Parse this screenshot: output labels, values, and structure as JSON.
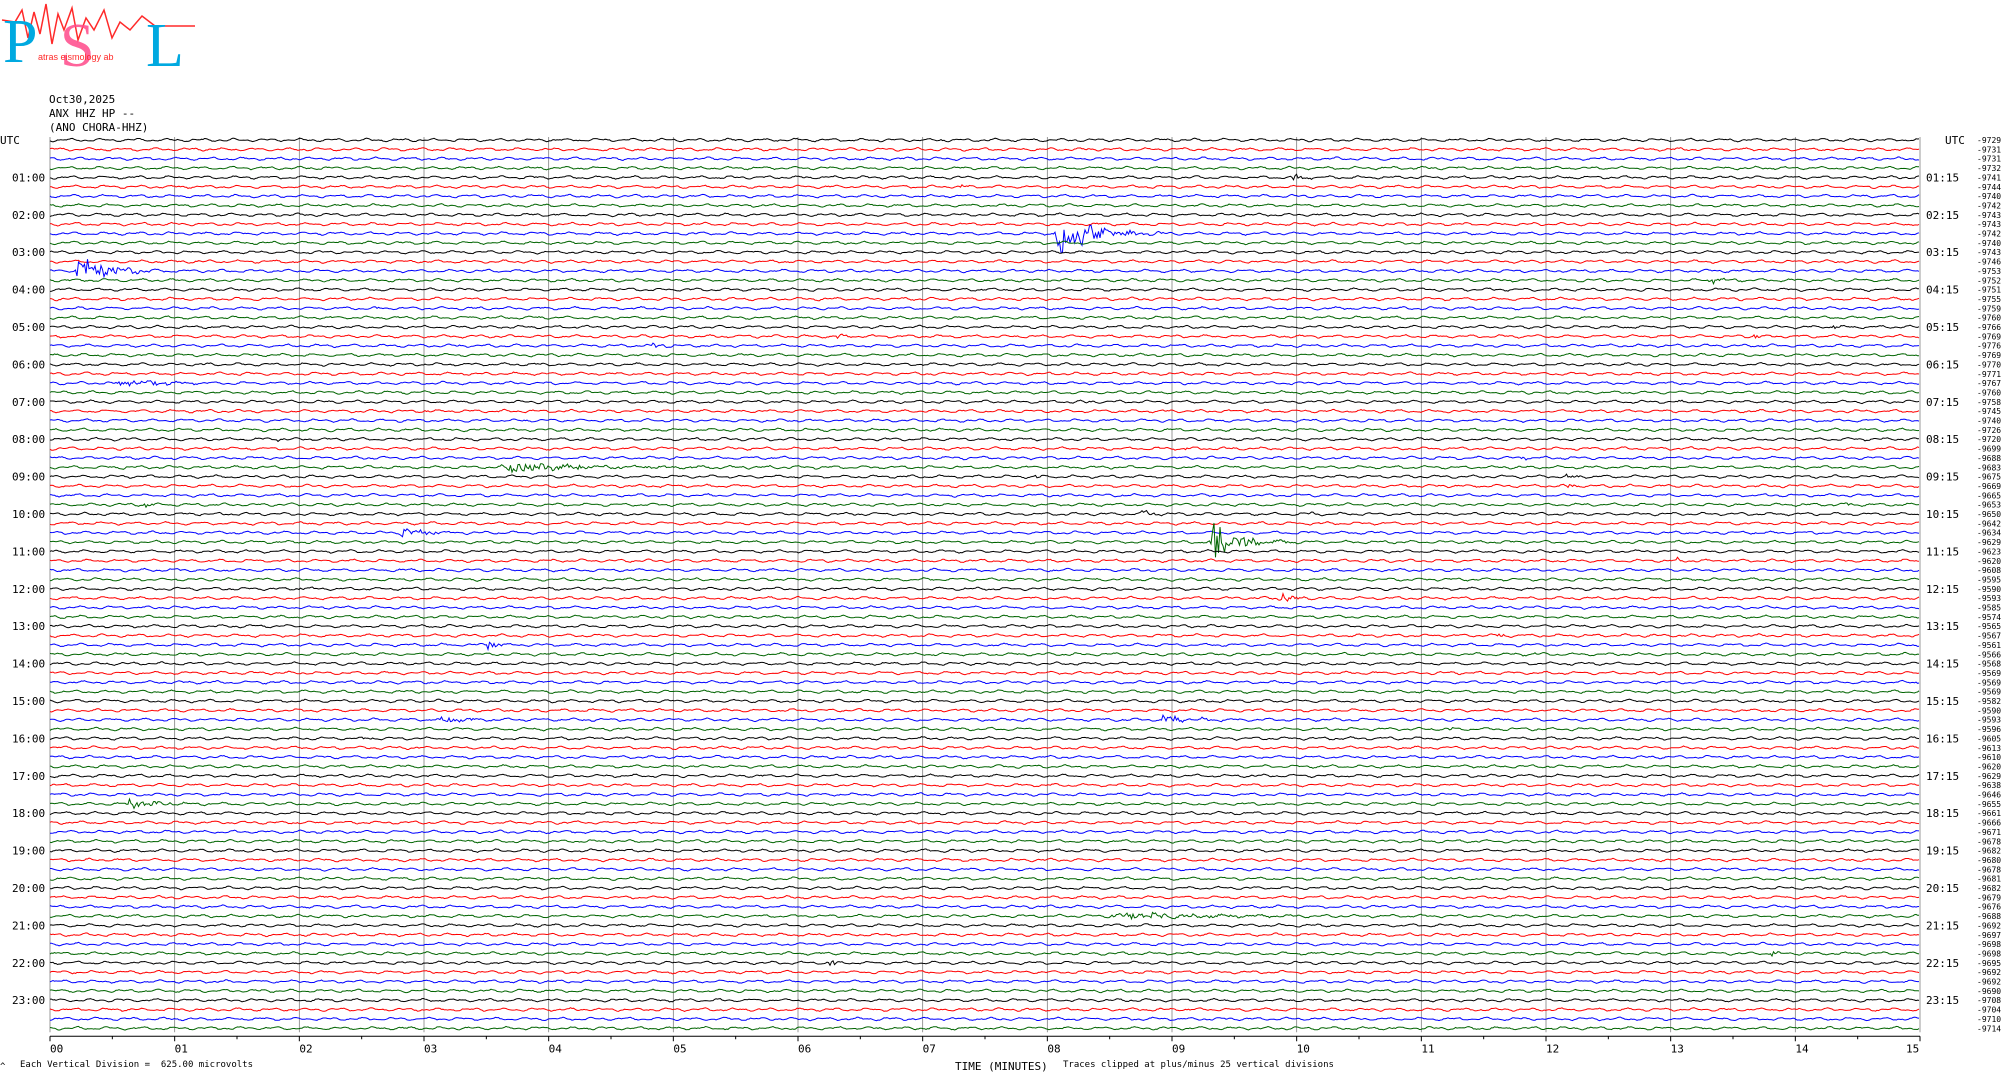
{
  "logo": {
    "text_p": "P",
    "text_s": "S",
    "text_l": "L",
    "sub_text": "atras  eismology  ab",
    "colors": {
      "main": "#00a9e0",
      "accent": "#ff2a2a"
    }
  },
  "header": {
    "date": "Oct30,2025",
    "station": "ANX HHZ HP --",
    "description": "(ANO CHORA-HHZ)"
  },
  "colors": {
    "black": "#000000",
    "red": "#ff0000",
    "blue": "#0000ff",
    "green": "#006400",
    "grid": "#808080"
  },
  "chart_data": {
    "type": "line",
    "xlabel": "TIME (MINUTES)",
    "xlim": [
      0,
      15
    ],
    "x_ticks": [
      "00",
      "01",
      "02",
      "03",
      "04",
      "05",
      "06",
      "07",
      "08",
      "09",
      "10",
      "11",
      "12",
      "13",
      "14",
      "15"
    ],
    "left_label_header": "UTC",
    "right_label_header": "UTC",
    "left_hour_labels": [
      "01:00",
      "02:00",
      "03:00",
      "04:00",
      "05:00",
      "06:00",
      "07:00",
      "08:00",
      "09:00",
      "10:00",
      "11:00",
      "12:00",
      "13:00",
      "14:00",
      "15:00",
      "16:00",
      "17:00",
      "18:00",
      "19:00",
      "20:00",
      "21:00",
      "22:00",
      "23:00"
    ],
    "right_hour_labels": [
      "01:15",
      "02:15",
      "03:15",
      "04:15",
      "05:15",
      "06:15",
      "07:15",
      "08:15",
      "09:15",
      "10:15",
      "11:15",
      "12:15",
      "13:15",
      "14:15",
      "15:15",
      "16:15",
      "17:15",
      "18:15",
      "19:15",
      "20:15",
      "21:15",
      "22:15",
      "23:15"
    ],
    "trace_count": 96,
    "color_cycle": [
      "black",
      "red",
      "blue",
      "green"
    ],
    "right_values": [
      -9729,
      -9731,
      -9731,
      -9732,
      -9741,
      -9744,
      -9740,
      -9742,
      -9743,
      -9743,
      -9742,
      -9740,
      -9743,
      -9746,
      -9753,
      -9752,
      -9751,
      -9755,
      -9759,
      -9760,
      -9766,
      -9769,
      -9776,
      -9769,
      -9770,
      -9771,
      -9767,
      -9760,
      -9758,
      -9745,
      -9740,
      -9726,
      -9720,
      -9699,
      -9688,
      -9683,
      -9675,
      -9669,
      -9665,
      -9653,
      -9650,
      -9642,
      -9634,
      -9629,
      -9623,
      -9620,
      -9608,
      -9595,
      -9590,
      -9593,
      -9585,
      -9574,
      -9565,
      -9567,
      -9561,
      -9566,
      -9568,
      -9569,
      -9569,
      -9569,
      -9582,
      -9590,
      -9593,
      -9596,
      -9605,
      -9613,
      -9610,
      -9620,
      -9629,
      -9638,
      -9646,
      -9655,
      -9661,
      -9666,
      -9671,
      -9678,
      -9682,
      -9680,
      -9678,
      -9681,
      -9682,
      -9679,
      -9676,
      -9688,
      -9692,
      -9697,
      -9698,
      -9698,
      -9695,
      -9692,
      -9692,
      -9690,
      -9708,
      -9704,
      -9710,
      -9714
    ],
    "events": [
      {
        "trace": 4,
        "minute": 9.95,
        "amp": 6,
        "dur": 0.25
      },
      {
        "trace": 5,
        "minute": 7.3,
        "amp": 3,
        "dur": 0.1
      },
      {
        "trace": 10,
        "minute": 8.05,
        "amp": 30,
        "dur": 0.9
      },
      {
        "trace": 14,
        "minute": 0.2,
        "amp": 16,
        "dur": 0.9
      },
      {
        "trace": 15,
        "minute": 13.3,
        "amp": 4,
        "dur": 0.4
      },
      {
        "trace": 18,
        "minute": 2.6,
        "amp": 4,
        "dur": 0.1
      },
      {
        "trace": 21,
        "minute": 6.3,
        "amp": 6,
        "dur": 0.15
      },
      {
        "trace": 21,
        "minute": 13.65,
        "amp": 4,
        "dur": 0.15
      },
      {
        "trace": 22,
        "minute": 4.8,
        "amp": 4,
        "dur": 0.3
      },
      {
        "trace": 20,
        "minute": 14.3,
        "amp": 3,
        "dur": 0.15
      },
      {
        "trace": 26,
        "minute": 0.5,
        "amp": 5,
        "dur": 1.2
      },
      {
        "trace": 28,
        "minute": 8.3,
        "amp": 3,
        "dur": 0.2
      },
      {
        "trace": 28,
        "minute": 13.05,
        "amp": 3,
        "dur": 0.15
      },
      {
        "trace": 29,
        "minute": 3.0,
        "amp": 2,
        "dur": 0.1
      },
      {
        "trace": 32,
        "minute": 1.8,
        "amp": 3,
        "dur": 0.15
      },
      {
        "trace": 33,
        "minute": 9.1,
        "amp": 3,
        "dur": 0.15
      },
      {
        "trace": 34,
        "minute": 11.8,
        "amp": 3,
        "dur": 0.15
      },
      {
        "trace": 35,
        "minute": 0.55,
        "amp": 3,
        "dur": 0.15
      },
      {
        "trace": 35,
        "minute": 3.6,
        "amp": 5,
        "dur": 3.0
      },
      {
        "trace": 36,
        "minute": 7.9,
        "amp": 3,
        "dur": 0.2
      },
      {
        "trace": 36,
        "minute": 12.15,
        "amp": 3,
        "dur": 0.3
      },
      {
        "trace": 37,
        "minute": 12.15,
        "amp": 4,
        "dur": 0.2
      },
      {
        "trace": 39,
        "minute": 0.75,
        "amp": 4,
        "dur": 0.2
      },
      {
        "trace": 39,
        "minute": 14.4,
        "amp": 3,
        "dur": 0.2
      },
      {
        "trace": 40,
        "minute": 8.75,
        "amp": 7,
        "dur": 0.25
      },
      {
        "trace": 40,
        "minute": 10.1,
        "amp": 2,
        "dur": 0.3
      },
      {
        "trace": 42,
        "minute": 2.8,
        "amp": 5,
        "dur": 0.8
      },
      {
        "trace": 43,
        "minute": 9.3,
        "amp": 28,
        "dur": 0.6
      },
      {
        "trace": 43,
        "minute": 9.8,
        "amp": 3,
        "dur": 0.5
      },
      {
        "trace": 45,
        "minute": 13.05,
        "amp": 3,
        "dur": 0.1
      },
      {
        "trace": 46,
        "minute": 1.0,
        "amp": 3,
        "dur": 0.1
      },
      {
        "trace": 48,
        "minute": 2.0,
        "amp": 3,
        "dur": 0.2
      },
      {
        "trace": 49,
        "minute": 9.85,
        "amp": 10,
        "dur": 0.3
      },
      {
        "trace": 51,
        "minute": 12.8,
        "amp": 2,
        "dur": 0.1
      },
      {
        "trace": 53,
        "minute": 11.6,
        "amp": 3,
        "dur": 0.2
      },
      {
        "trace": 54,
        "minute": 3.5,
        "amp": 6,
        "dur": 0.25
      },
      {
        "trace": 55,
        "minute": 11.9,
        "amp": 2,
        "dur": 0.1
      },
      {
        "trace": 62,
        "minute": 3.1,
        "amp": 3,
        "dur": 0.8
      },
      {
        "trace": 62,
        "minute": 8.9,
        "amp": 4,
        "dur": 0.9
      },
      {
        "trace": 63,
        "minute": 11.2,
        "amp": 3,
        "dur": 0.2
      },
      {
        "trace": 64,
        "minute": 2.5,
        "amp": 3,
        "dur": 0.2
      },
      {
        "trace": 71,
        "minute": 0.6,
        "amp": 5,
        "dur": 0.9
      },
      {
        "trace": 83,
        "minute": 8.5,
        "amp": 4,
        "dur": 2.6
      },
      {
        "trace": 87,
        "minute": 13.8,
        "amp": 3,
        "dur": 0.2
      },
      {
        "trace": 88,
        "minute": 6.25,
        "amp": 5,
        "dur": 0.2
      }
    ]
  },
  "footer": {
    "left_mark": "^",
    "scale_text": "Each Vertical Division =  625.00 microvolts",
    "clip_text": "Traces clipped at plus/minus 25 vertical divisions"
  }
}
